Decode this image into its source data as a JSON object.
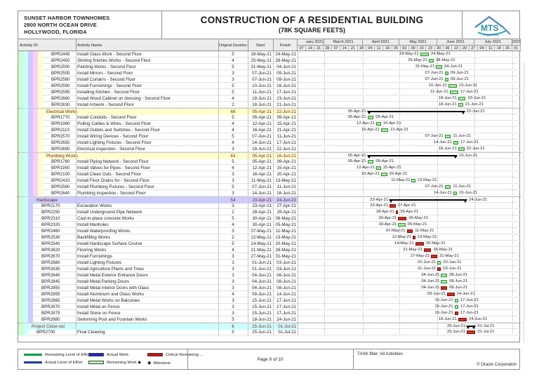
{
  "header": {
    "project_lines": [
      "SUNSET HARBOR TOWNHOMES",
      "2800 NORTH OCEAN DRIVE",
      "HOLLYWOOD, FLORIDA"
    ],
    "title": "CONSTRUCTION OF A RESIDENTIAL BUILDING",
    "subtitle": "(78K SQUARE FEETS)",
    "logo_text": "MTS",
    "logo_sub": "Engineering"
  },
  "table": {
    "columns": {
      "activity_id": "Activity ID",
      "activity_name": "Activity Name",
      "original_duration": "Original Duration",
      "start": "Start",
      "finish": "Finish"
    }
  },
  "timeline": {
    "start_date": "07-Feb-21",
    "days_total": 182,
    "months": [
      {
        "label": "uary 2021",
        "days": 22
      },
      {
        "label": "March 2021",
        "days": 31
      },
      {
        "label": "April 2021",
        "days": 30
      },
      {
        "label": "May 2021",
        "days": 31
      },
      {
        "label": "June 2021",
        "days": 30
      },
      {
        "label": "July 2021",
        "days": 31
      },
      {
        "label": "2021",
        "days": 7
      }
    ],
    "weeks": [
      "07",
      "14",
      "21",
      "28",
      "07",
      "14",
      "21",
      "28",
      "04",
      "11",
      "18",
      "25",
      "02",
      "09",
      "16",
      "23",
      "30",
      "06",
      "13",
      "20",
      "27",
      "04",
      "11",
      "18",
      "25",
      "01"
    ]
  },
  "rows": [
    {
      "type": "task",
      "level": 5,
      "id": "BPR2445",
      "name": "Install Glass Work - Second Floor",
      "duration": "5",
      "start": "18-May-21",
      "finish": "24-May-21",
      "bar": "green"
    },
    {
      "type": "task",
      "level": 5,
      "id": "BPR2450",
      "name": "Skirting finishes Works - Second Floor",
      "duration": "4",
      "start": "25-May-21",
      "finish": "28-May-21",
      "bar": "green"
    },
    {
      "type": "task",
      "level": 5,
      "id": "BPR2500",
      "name": "Painting Works - Second Floor",
      "duration": "5",
      "start": "31-May-21",
      "finish": "04-Jun-21",
      "bar": "green"
    },
    {
      "type": "task",
      "level": 5,
      "id": "BPR2505",
      "name": "Install Mirrors - Second Floor",
      "duration": "3",
      "start": "07-Jun-21",
      "finish": "09-Jun-21",
      "bar": "green"
    },
    {
      "type": "task",
      "level": 5,
      "id": "BPR2580",
      "name": "Install Curtains - Second Floor",
      "duration": "3",
      "start": "07-Jun-21",
      "finish": "09-Jun-21",
      "bar": "green"
    },
    {
      "type": "task",
      "level": 5,
      "id": "BPR2590",
      "name": "Install Furnishings - Second Floor",
      "duration": "5",
      "start": "10-Jun-21",
      "finish": "16-Jun-21",
      "bar": "green"
    },
    {
      "type": "task",
      "level": 5,
      "id": "BPR2595",
      "name": "Installing Kitchen - Second Floor",
      "duration": "5",
      "start": "11-Jun-21",
      "finish": "17-Jun-21",
      "bar": "green"
    },
    {
      "type": "task",
      "level": 5,
      "id": "BPR2660",
      "name": "Install Wood Cabinet on dressing - Second Floor",
      "duration": "4",
      "start": "18-Jun-21",
      "finish": "23-Jun-21",
      "bar": "green"
    },
    {
      "type": "task",
      "level": 5,
      "id": "BPR2830",
      "name": "Install Artwork - Second Floor",
      "duration": "2",
      "start": "18-Jun-21",
      "finish": "21-Jun-21",
      "bar": "green"
    },
    {
      "type": "group",
      "level": 5,
      "name": "Electrical Works",
      "duration": "68",
      "start": "05-Apr-21",
      "finish": "22-Jun-21",
      "bar": "summary"
    },
    {
      "type": "task",
      "level": 5,
      "id": "BPR1770",
      "name": "Install Conduits - Second Floor",
      "duration": "5",
      "start": "05-Apr-21",
      "finish": "09-Apr-21",
      "bar": "green"
    },
    {
      "type": "task",
      "level": 5,
      "id": "BPR1960",
      "name": "Pulling Cables & Wires - Second Floor",
      "duration": "4",
      "start": "12-Apr-21",
      "finish": "15-Apr-21",
      "bar": "green"
    },
    {
      "type": "task",
      "level": 5,
      "id": "BPR2110",
      "name": "Install Outlets and Switches - Second Floor",
      "duration": "4",
      "start": "16-Apr-21",
      "finish": "21-Apr-21",
      "bar": "green"
    },
    {
      "type": "task",
      "level": 5,
      "id": "BPR2570",
      "name": "Install Wiring Devices - Second Floor",
      "duration": "5",
      "start": "07-Jun-21",
      "finish": "11-Jun-21",
      "bar": "green"
    },
    {
      "type": "task",
      "level": 5,
      "id": "BPR2650",
      "name": "Install Lighting Fixtures - Second Floor",
      "duration": "4",
      "start": "14-Jun-21",
      "finish": "17-Jun-21",
      "bar": "green"
    },
    {
      "type": "task",
      "level": 5,
      "id": "BPR2690",
      "name": "Electrical inspection - Second Floor",
      "duration": "3",
      "start": "18-Jun-21",
      "finish": "22-Jun-21",
      "bar": "green"
    },
    {
      "type": "group",
      "level": 5,
      "name": "Plumbing Works",
      "duration": "63",
      "start": "05-Apr-21",
      "finish": "16-Jun-21",
      "bar": "summary"
    },
    {
      "type": "task",
      "level": 5,
      "id": "BPR1760",
      "name": "Install Piping Network - Second Floor",
      "duration": "5",
      "start": "05-Apr-21",
      "finish": "09-Apr-21",
      "bar": "green"
    },
    {
      "type": "task",
      "level": 5,
      "id": "BPR1950",
      "name": "Install Valves for Pipes - Second Floor",
      "duration": "4",
      "start": "12-Apr-21",
      "finish": "15-Apr-21",
      "bar": "green"
    },
    {
      "type": "task",
      "level": 5,
      "id": "BPR2100",
      "name": "Install Clean Outs - Second Floor",
      "duration": "3",
      "start": "16-Apr-21",
      "finish": "20-Apr-21",
      "bar": "green"
    },
    {
      "type": "task",
      "level": 5,
      "id": "BPR2410",
      "name": "Install Floor Drains for - Second Floor",
      "duration": "3",
      "start": "11-May-21",
      "finish": "13-May-21",
      "bar": "green"
    },
    {
      "type": "task",
      "level": 5,
      "id": "BPR2560",
      "name": "Install Plumbing Fixtures - Second Floor",
      "duration": "5",
      "start": "07-Jun-21",
      "finish": "11-Jun-21",
      "bar": "green"
    },
    {
      "type": "task",
      "level": 5,
      "id": "BPR2640",
      "name": "Plumbing inspection - Second Floor",
      "duration": "3",
      "start": "14-Jun-21",
      "finish": "16-Jun-21",
      "bar": "green"
    },
    {
      "type": "group",
      "level": 3,
      "name": "Hardscape",
      "duration": "54",
      "start": "23-Apr-21",
      "finish": "24-Jun-21",
      "bar": "summary"
    },
    {
      "type": "task",
      "level": 3,
      "id": "BPR2170",
      "name": "Excavation Works",
      "duration": "3",
      "start": "23-Apr-21",
      "finish": "27-Apr-21",
      "bar": "red"
    },
    {
      "type": "task",
      "level": 3,
      "id": "BPR2250",
      "name": "Install Underground Pipe Network",
      "duration": "2",
      "start": "28-Apr-21",
      "finish": "29-Apr-21",
      "bar": "red"
    },
    {
      "type": "task",
      "level": 3,
      "id": "BPR2310",
      "name": "Cast-in-place concrete Works",
      "duration": "5",
      "start": "30-Apr-21",
      "finish": "06-May-21",
      "bar": "red"
    },
    {
      "type": "task",
      "level": 3,
      "id": "BPR2320",
      "name": "Install Manholes",
      "duration": "4",
      "start": "30-Apr-21",
      "finish": "05-May-21",
      "bar": "green"
    },
    {
      "type": "task",
      "level": 3,
      "id": "BPR2460",
      "name": "Install Waterproofing Works",
      "duration": "3",
      "start": "07-May-21",
      "finish": "11-May-21",
      "bar": "red"
    },
    {
      "type": "task",
      "level": 3,
      "id": "BPR2530",
      "name": "Backfilling Works",
      "duration": "2",
      "start": "12-May-21",
      "finish": "13-May-21",
      "bar": "red"
    },
    {
      "type": "task",
      "level": 3,
      "id": "BPR2540",
      "name": "Install Hardscape Surface Course",
      "duration": "5",
      "start": "14-May-21",
      "finish": "20-May-21",
      "bar": "red"
    },
    {
      "type": "task",
      "level": 3,
      "id": "BPR2620",
      "name": "Flooring Works",
      "duration": "4",
      "start": "21-May-21",
      "finish": "26-May-21",
      "bar": "red"
    },
    {
      "type": "task",
      "level": 3,
      "id": "BPR2670",
      "name": "Install Furnishings",
      "duration": "3",
      "start": "27-May-21",
      "finish": "31-May-21",
      "bar": "red"
    },
    {
      "type": "task",
      "level": 3,
      "id": "BPR2680",
      "name": "Install Lighting Fixtures",
      "duration": "3",
      "start": "01-Jun-21",
      "finish": "03-Jun-21",
      "bar": "green"
    },
    {
      "type": "task",
      "level": 3,
      "id": "BPR2835",
      "name": "Install Agriculture Plants and Trees",
      "duration": "3",
      "start": "01-Jun-21",
      "finish": "03-Jun-21",
      "bar": "red"
    },
    {
      "type": "task",
      "level": 3,
      "id": "BPR2840",
      "name": "Install Metal Exterior Entrance Doors",
      "duration": "3",
      "start": "04-Jun-21",
      "finish": "08-Jun-21",
      "bar": "green"
    },
    {
      "type": "task",
      "level": 3,
      "id": "BPR2845",
      "name": "Install Metal Parking Doors",
      "duration": "3",
      "start": "04-Jun-21",
      "finish": "08-Jun-21",
      "bar": "green"
    },
    {
      "type": "task",
      "level": 3,
      "id": "BPR2850",
      "name": "Install Metal Interior Doors with Glass",
      "duration": "3",
      "start": "04-Jun-21",
      "finish": "08-Jun-21",
      "bar": "red"
    },
    {
      "type": "task",
      "level": 3,
      "id": "BPR2855",
      "name": "Install Aluminium and Glass Works",
      "duration": "4",
      "start": "09-Jun-21",
      "finish": "14-Jun-21",
      "bar": "red"
    },
    {
      "type": "task",
      "level": 3,
      "id": "BPR2865",
      "name": "Install Metal Works on Balconies",
      "duration": "3",
      "start": "15-Jun-21",
      "finish": "17-Jun-21",
      "bar": "green"
    },
    {
      "type": "task",
      "level": 3,
      "id": "BPR2870",
      "name": "Install Metal on Fence",
      "duration": "3",
      "start": "15-Jun-21",
      "finish": "17-Jun-21",
      "bar": "green"
    },
    {
      "type": "task",
      "level": 3,
      "id": "BPR2875",
      "name": "Install Stone on Fence",
      "duration": "3",
      "start": "15-Jun-21",
      "finish": "17-Jun-21",
      "bar": "red"
    },
    {
      "type": "task",
      "level": 3,
      "id": "BPR2880",
      "name": "Swimming Pool and Fountain Works",
      "duration": "5",
      "start": "18-Jun-21",
      "finish": "24-Jun-21",
      "bar": "red"
    },
    {
      "type": "group",
      "level": 2,
      "name": "Project Close out",
      "duration": "6",
      "start": "25-Jun-21",
      "finish": "01-Jul-21",
      "bar": "summary"
    },
    {
      "type": "task",
      "level": 2,
      "id": "BPR2700",
      "name": "Final Cleaning",
      "duration": "5",
      "start": "25-Jun-21",
      "finish": "01-Jul-21",
      "bar": "red"
    }
  ],
  "footer": {
    "legend": [
      {
        "icon": "line-green",
        "label": "Remaining Level of Effort",
        "row": 0,
        "col": 0
      },
      {
        "icon": "line-navy",
        "label": "Actual Level of Effort",
        "row": 1,
        "col": 0
      },
      {
        "icon": "bar-blue",
        "label": "Actual Work",
        "row": 0,
        "col": 1
      },
      {
        "icon": "bar-lightgreen",
        "label": "Remaining Work ◆",
        "row": 1,
        "col": 1
      },
      {
        "icon": "bar-red",
        "label": "Critical Remaining ...",
        "row": 0,
        "col": 2
      },
      {
        "icon": "diamond",
        "label": "Milestone",
        "row": 1,
        "col": 2
      }
    ],
    "page_label": "Page 9 of 10",
    "task_filter": "TASK filter: All Activities",
    "copyright": "© Oracle Corporation"
  },
  "colors": {
    "bands": [
      "#ccffcc",
      "#ccffff",
      "#ccccff",
      "#ffccff",
      "#ffffcc"
    ],
    "group_text": "#7a2020",
    "bar_green_fill": "#a6e9a0",
    "bar_green_border": "#2e8b2e",
    "bar_red_fill": "#d42a1c",
    "bar_red_border": "#7d120c",
    "summary_bar": "#000000",
    "legend_line_green": "#009a44",
    "legend_line_navy": "#1f3b9e",
    "legend_bar_blue": "#2222cc",
    "legend_bar_lightgreen": "#b8f0b0",
    "legend_bar_red": "#cc1111"
  }
}
